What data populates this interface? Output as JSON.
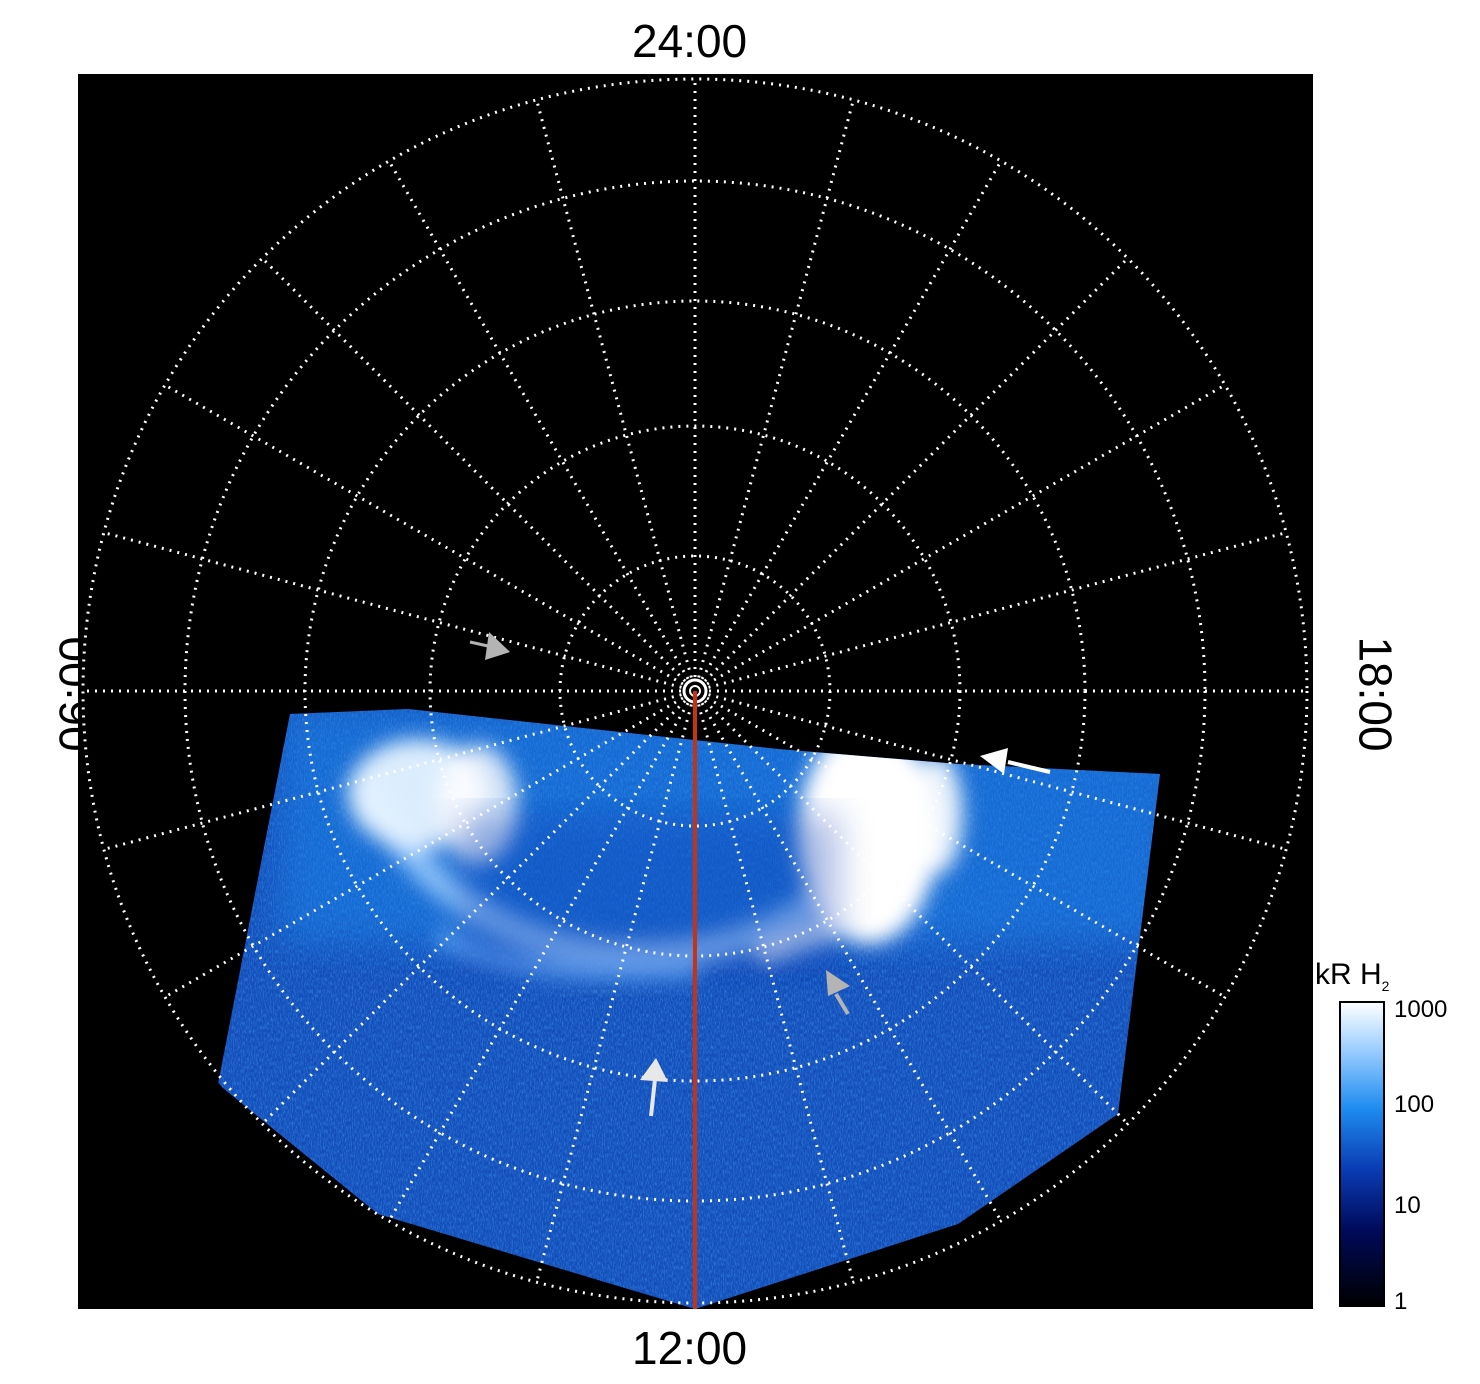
{
  "local_time_labels": {
    "top": "24:00",
    "bottom": "12:00",
    "left": "06:00",
    "right": "18:00"
  },
  "colorbar": {
    "title_main": "kR H",
    "title_sub": "2",
    "scale": "log",
    "ticks": [
      "1000",
      "100",
      "10",
      "1"
    ],
    "colors": [
      "#000000",
      "#000a5a",
      "#0a3cb4",
      "#1e8cf0",
      "#a0d0ff",
      "#ffffff"
    ]
  },
  "colors": {
    "background": "#000000",
    "grid": "#ffffff",
    "meridian_line": "#c83214",
    "arrow_gray": "#b4b4b4",
    "arrow_white": "#ffffff"
  }
}
